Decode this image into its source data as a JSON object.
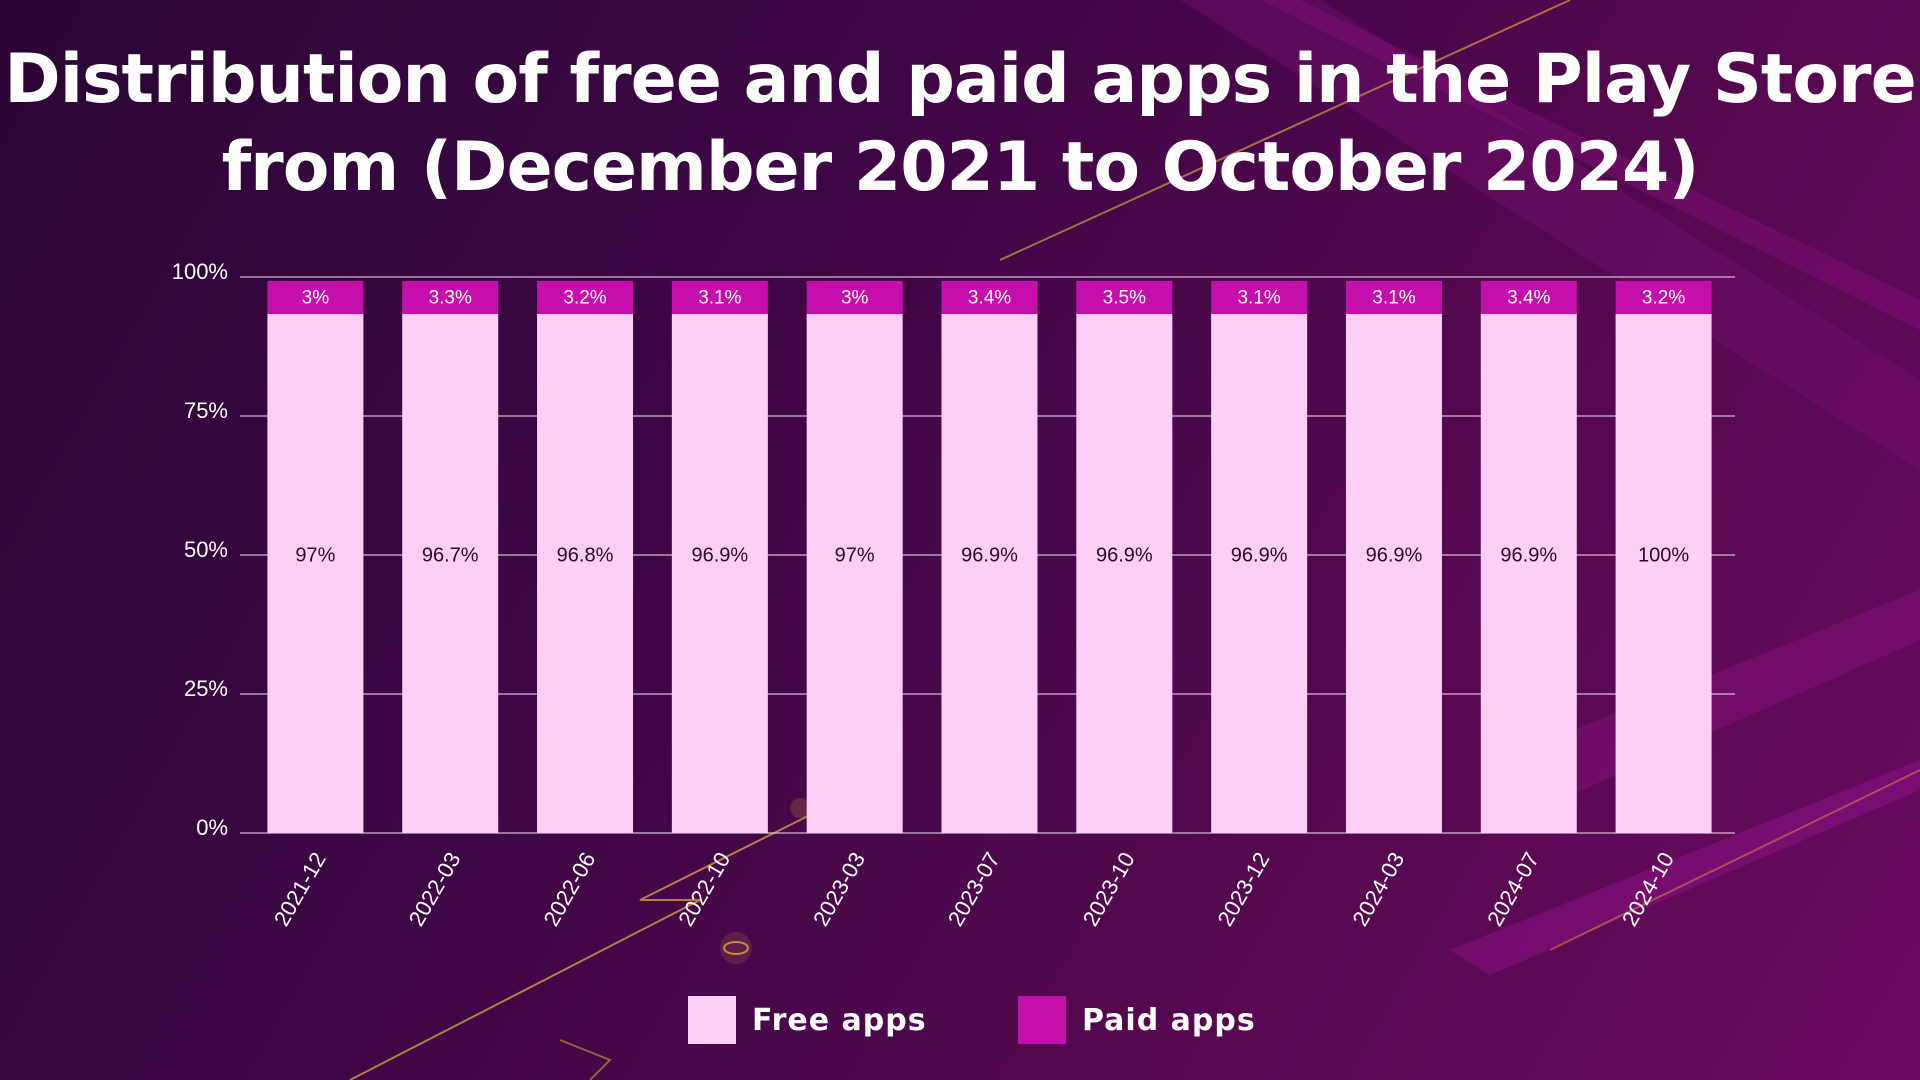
{
  "title": "Distribution of free and paid apps in the Play Store from (December 2021 to October 2024)",
  "colors": {
    "free": "#fecff6",
    "paid": "#c40fad",
    "grid": "#e9d6ee",
    "axis_text": "#ffffff",
    "label_dark": "#2a0a2a",
    "label_light": "#ffffff"
  },
  "legend": {
    "free_label": "Free apps",
    "paid_label": "Paid apps"
  },
  "chart_data": {
    "type": "bar",
    "stacked": true,
    "title": "Distribution of free and paid apps in the Play Store from (December 2021 to October 2024)",
    "xlabel": "",
    "ylabel": "",
    "categories": [
      "2021-12",
      "2022-03",
      "2022-06",
      "2022-10",
      "2023-03",
      "2023-07",
      "2023-10",
      "2023-12",
      "2024-03",
      "2024-07",
      "2024-10"
    ],
    "series": [
      {
        "name": "Free apps",
        "values": [
          97,
          96.7,
          96.8,
          96.9,
          97,
          96.9,
          96.9,
          96.9,
          96.9,
          96.9,
          100
        ],
        "labels": [
          "97%",
          "96.7%",
          "96.8%",
          "96.9%",
          "97%",
          "96.9%",
          "96.9%",
          "96.9%",
          "96.9%",
          "96.9%",
          "100%"
        ]
      },
      {
        "name": "Paid apps",
        "values": [
          3,
          3.3,
          3.2,
          3.1,
          3,
          3.4,
          3.5,
          3.1,
          3.1,
          3.4,
          3.2
        ],
        "labels": [
          "3%",
          "3.3%",
          "3.2%",
          "3.1%",
          "3%",
          "3.4%",
          "3.5%",
          "3.1%",
          "3.1%",
          "3.4%",
          "3.2%"
        ]
      }
    ],
    "y_ticks": [
      "0%",
      "25%",
      "50%",
      "75%",
      "100%"
    ],
    "ylim": [
      0,
      100
    ],
    "grid": true,
    "legend_position": "bottom-center"
  }
}
